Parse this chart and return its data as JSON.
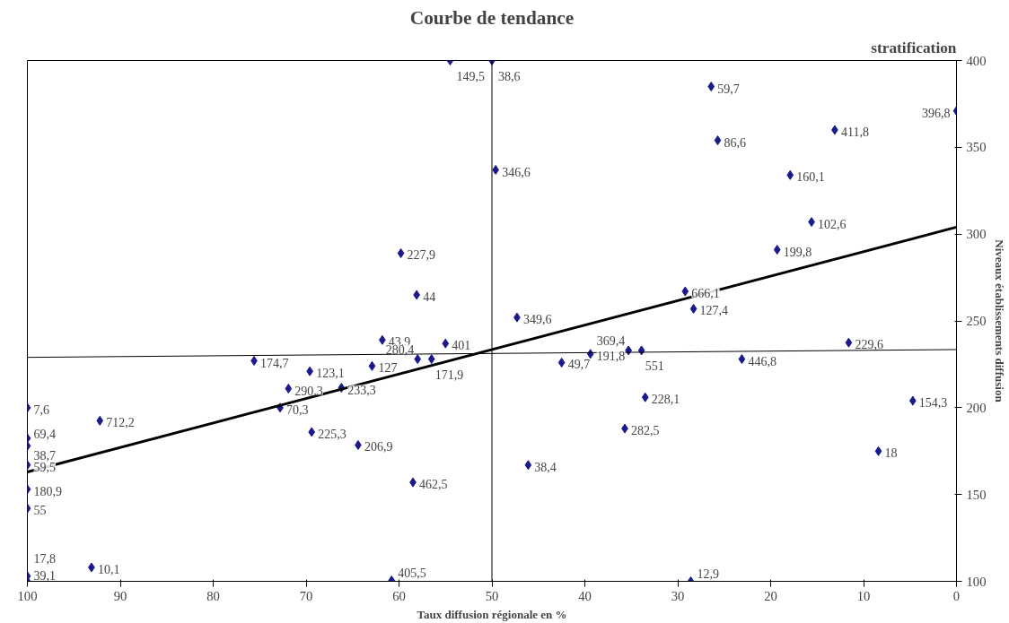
{
  "chart_data": {
    "type": "scatter",
    "title": "Courbe de tendance",
    "xlabel": "Taux diffusion régionale en %",
    "ylabel": "Niveaux établissements diffusion",
    "annotations": [
      "stratification",
      {
        "text": "149,5",
        "x": 54.5,
        "y": 400
      },
      {
        "text": "38,6",
        "x": 50.0,
        "y": 400
      },
      {
        "text": "59,7",
        "x": 26.4,
        "y": 385
      },
      {
        "text": "396,8",
        "x": 0,
        "y": 371
      },
      {
        "text": "411,8",
        "x": 13.1,
        "y": 360
      },
      {
        "text": "86,6",
        "x": 25.7,
        "y": 354
      },
      {
        "text": "160,1",
        "x": 17.9,
        "y": 334
      },
      {
        "text": "346,6",
        "x": 49.6,
        "y": 337
      },
      {
        "text": "102,6",
        "x": 15.6,
        "y": 307
      },
      {
        "text": "199,8",
        "x": 19.3,
        "y": 291
      },
      {
        "text": "227,9",
        "x": 59.8,
        "y": 289
      },
      {
        "text": "44",
        "x": 58.1,
        "y": 265
      },
      {
        "text": "666,1",
        "x": 29.2,
        "y": 267
      },
      {
        "text": "127,4",
        "x": 28.3,
        "y": 257
      },
      {
        "text": "349,6",
        "x": 47.3,
        "y": 252
      },
      {
        "text": "229,6",
        "x": 11.6,
        "y": 237.5
      },
      {
        "text": "43,9",
        "x": 61.8,
        "y": 239
      },
      {
        "text": "401",
        "x": 55.0,
        "y": 237
      },
      {
        "text": "174,7",
        "x": 75.6,
        "y": 227
      },
      {
        "text": "123,1",
        "x": 69.6,
        "y": 221
      },
      {
        "text": "127",
        "x": 62.9,
        "y": 224
      },
      {
        "text": "280,4",
        "x": 58.0,
        "y": 228
      },
      {
        "text": "171,9",
        "x": 56.5,
        "y": 228
      },
      {
        "text": "290,3",
        "x": 71.9,
        "y": 211
      },
      {
        "text": "233,3",
        "x": 66.2,
        "y": 211.5
      },
      {
        "text": "49,7",
        "x": 42.5,
        "y": 226
      },
      {
        "text": "191,8",
        "x": 39.4,
        "y": 231
      },
      {
        "text": "369,4",
        "x": 35.3,
        "y": 233
      },
      {
        "text": "551",
        "x": 33.9,
        "y": 233
      },
      {
        "text": "446,8",
        "x": 23.1,
        "y": 228
      },
      {
        "text": "154,3",
        "x": 4.7,
        "y": 204
      },
      {
        "text": "228,1",
        "x": 33.5,
        "y": 206
      },
      {
        "text": "282,5",
        "x": 35.7,
        "y": 188
      },
      {
        "text": "18",
        "x": 8.4,
        "y": 175
      },
      {
        "text": "70,3",
        "x": 72.8,
        "y": 200
      },
      {
        "text": "225,3",
        "x": 69.4,
        "y": 186
      },
      {
        "text": "206,9",
        "x": 64.4,
        "y": 178.5
      },
      {
        "text": "38,4",
        "x": 46.1,
        "y": 167
      },
      {
        "text": "462,5",
        "x": 58.5,
        "y": 157
      },
      {
        "text": "712,2",
        "x": 92.2,
        "y": 192.5
      },
      {
        "text": "7,6",
        "x": 100,
        "y": 200
      },
      {
        "text": "69,4",
        "x": 100,
        "y": 182.4
      },
      {
        "text": "38,7",
        "x": 100,
        "y": 178
      },
      {
        "text": "59,5",
        "x": 100,
        "y": 167
      },
      {
        "text": "180,9",
        "x": 100,
        "y": 153
      },
      {
        "text": "55",
        "x": 100,
        "y": 142
      },
      {
        "text": "10,1",
        "x": 93.1,
        "y": 108
      },
      {
        "text": "17,8",
        "x": 100,
        "y": 103
      },
      {
        "text": "39,1",
        "x": 100,
        "y": 100
      },
      {
        "text": "405,5",
        "x": 60.8,
        "y": 100.5
      },
      {
        "text": "12,9",
        "x": 28.6,
        "y": 100
      }
    ],
    "xlim": [
      100,
      0
    ],
    "xticks": [
      100,
      90,
      80,
      70,
      60,
      50,
      40,
      30,
      20,
      10,
      0
    ],
    "ylim": [
      100,
      400
    ],
    "yticks": [
      100,
      150,
      200,
      250,
      300,
      350,
      400
    ],
    "grid": false,
    "marker": "diamond",
    "ref_lines": [
      {
        "axis": "x",
        "value": 50,
        "color": "#000000"
      }
    ],
    "series": [
      {
        "color": "#1a1a8c",
        "x": [
          54.5,
          50.0,
          26.4,
          0,
          13.1,
          25.7,
          17.9,
          49.6,
          15.6,
          19.3,
          59.8,
          58.1,
          29.2,
          28.3,
          47.3,
          11.6,
          61.8,
          55.0,
          75.6,
          69.6,
          62.9,
          58.0,
          56.5,
          71.9,
          66.2,
          42.5,
          39.4,
          35.3,
          33.9,
          23.1,
          4.7,
          33.5,
          35.7,
          8.4,
          72.8,
          69.4,
          64.4,
          46.1,
          58.5,
          92.2,
          100,
          100,
          100,
          100,
          100,
          100,
          93.1,
          100,
          100,
          60.8,
          28.6
        ],
        "values": [
          400,
          400,
          385,
          371,
          360,
          354,
          334,
          337,
          307,
          291,
          289,
          265,
          267,
          257,
          252,
          237.5,
          239,
          237,
          227,
          221,
          224,
          228,
          228,
          211,
          211.5,
          226,
          231,
          233,
          233,
          228,
          204,
          206,
          188,
          175,
          200,
          186,
          178.5,
          167,
          157,
          192.5,
          200,
          182.4,
          178,
          167,
          153,
          142,
          108,
          103,
          100,
          100.5,
          100
        ]
      },
      {
        "type": "line",
        "color": "#000000",
        "marker": "none",
        "x": [
          100,
          0
        ],
        "values": [
          163,
          304
        ]
      },
      {
        "type": "line",
        "color": "#000000",
        "marker": "none",
        "x": [
          100,
          0
        ],
        "values": [
          229,
          233.5
        ]
      }
    ]
  }
}
